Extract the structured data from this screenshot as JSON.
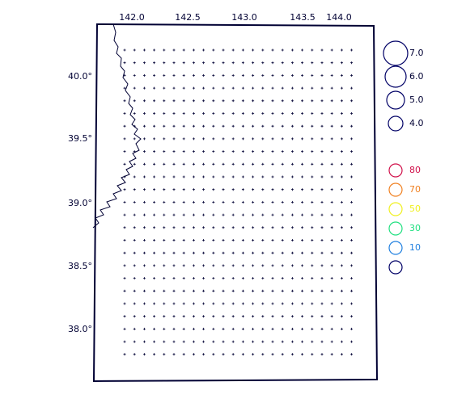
{
  "map": {
    "lon_ticks": [
      "142.0",
      "142.5",
      "143.0",
      "143.5",
      "144.0"
    ],
    "lat_ticks": [
      "40.0°",
      "39.5°",
      "39.0°",
      "38.5°",
      "38.0°"
    ]
  },
  "legend": {
    "magnitudes": [
      "7.0",
      "6.0",
      "5.0",
      "4.0"
    ],
    "depths": [
      {
        "label": "80",
        "color": "#d0104a"
      },
      {
        "label": "70",
        "color": "#f08020"
      },
      {
        "label": "50",
        "color": "#f0f020"
      },
      {
        "label": "30",
        "color": "#20e080"
      },
      {
        "label": "10",
        "color": "#2080e0"
      }
    ]
  }
}
